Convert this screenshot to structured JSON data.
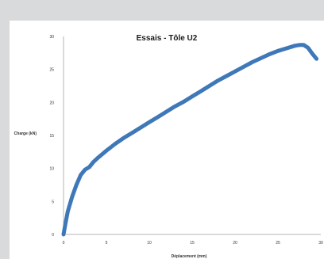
{
  "chart_data": {
    "type": "line",
    "title": "Essais - Tôle U2",
    "xlabel": "Déplacement (mm)",
    "ylabel": "Charge (kN)",
    "xlim": [
      0,
      30
    ],
    "ylim": [
      0,
      30
    ],
    "x_ticks": [
      0,
      5,
      10,
      15,
      20,
      25,
      30
    ],
    "y_ticks": [
      0,
      5,
      10,
      15,
      20,
      25,
      30
    ],
    "grid": false,
    "legend": "none",
    "series": [
      {
        "color": "#3f78b8",
        "x": [
          0,
          0.2,
          0.5,
          1,
          1.5,
          2,
          2.5,
          3,
          3.5,
          4,
          5,
          6,
          7,
          8,
          9,
          10,
          11,
          12,
          13,
          14,
          15,
          16,
          17,
          18,
          19,
          20,
          21,
          22,
          23,
          24,
          25,
          26,
          27,
          27.5,
          28,
          28.5,
          29,
          29.5
        ],
        "y": [
          0,
          1.5,
          3.5,
          5.7,
          7.5,
          9.0,
          9.8,
          10.2,
          11.0,
          11.6,
          12.7,
          13.7,
          14.6,
          15.4,
          16.2,
          17.0,
          17.8,
          18.6,
          19.4,
          20.1,
          20.9,
          21.7,
          22.5,
          23.3,
          24.0,
          24.7,
          25.4,
          26.1,
          26.7,
          27.3,
          27.8,
          28.2,
          28.6,
          28.7,
          28.7,
          28.3,
          27.4,
          26.6
        ]
      }
    ]
  }
}
